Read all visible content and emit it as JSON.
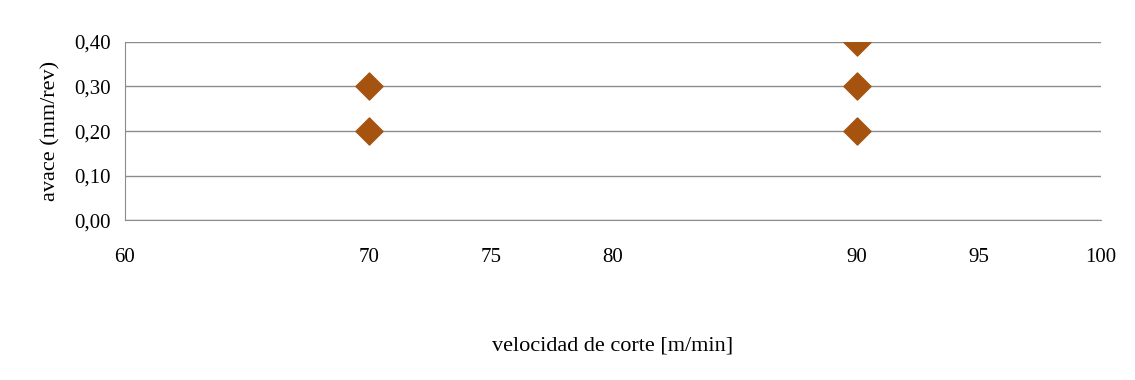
{
  "chart_data": {
    "type": "scatter",
    "x_label": "velocidad de corte [m/min]",
    "y_label": "avace (mm/rev)",
    "x": [
      70,
      70,
      90,
      90,
      90
    ],
    "values": [
      0.3,
      0.2,
      0.4,
      0.3,
      0.2
    ],
    "color": "#a5530f",
    "marker": "diamond",
    "xlim": [
      60,
      100
    ],
    "xticks": [
      60,
      70,
      75,
      80,
      90,
      95,
      100
    ],
    "ylim": [
      0,
      0.4
    ],
    "yticks": [
      {
        "value": 0,
        "label": "0,00"
      },
      {
        "value": 0.1,
        "label": "0,10"
      },
      {
        "value": 0.2,
        "label": "0,20"
      },
      {
        "value": 0.3,
        "label": "0,30"
      },
      {
        "value": 0.4,
        "label": "0,40"
      }
    ],
    "grid": true
  }
}
